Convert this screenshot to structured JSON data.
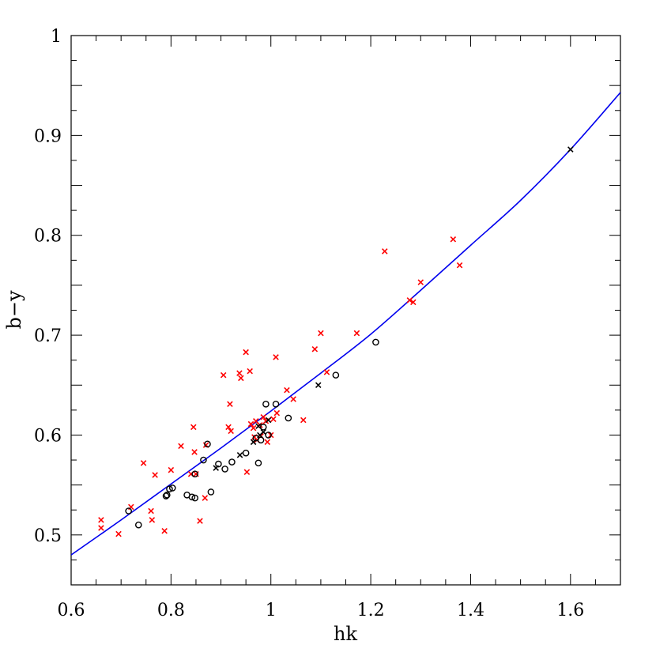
{
  "chart_data": {
    "type": "scatter",
    "title": "",
    "xlabel": "hk",
    "ylabel": "b−y",
    "xlim": [
      0.6,
      1.7
    ],
    "ylim": [
      0.45,
      1.0
    ],
    "x_ticks": [
      "0.6",
      "0.8",
      "1",
      "1.2",
      "1.4",
      "1.6"
    ],
    "y_ticks": [
      "0.5",
      "0.6",
      "0.7",
      "0.8",
      "0.9",
      "1"
    ],
    "grid": false,
    "legend": "none",
    "series": [
      {
        "marker": "x",
        "color": "#ff0000",
        "points": [
          [
            0.66,
            0.515
          ],
          [
            0.66,
            0.507
          ],
          [
            0.695,
            0.501
          ],
          [
            0.72,
            0.528
          ],
          [
            0.745,
            0.572
          ],
          [
            0.76,
            0.524
          ],
          [
            0.762,
            0.515
          ],
          [
            0.768,
            0.56
          ],
          [
            0.787,
            0.504
          ],
          [
            0.8,
            0.565
          ],
          [
            0.82,
            0.589
          ],
          [
            0.84,
            0.561
          ],
          [
            0.845,
            0.608
          ],
          [
            0.847,
            0.583
          ],
          [
            0.85,
            0.561
          ],
          [
            0.858,
            0.514
          ],
          [
            0.868,
            0.537
          ],
          [
            0.87,
            0.59
          ],
          [
            0.905,
            0.66
          ],
          [
            0.915,
            0.608
          ],
          [
            0.918,
            0.631
          ],
          [
            0.92,
            0.604
          ],
          [
            0.937,
            0.662
          ],
          [
            0.94,
            0.657
          ],
          [
            0.95,
            0.683
          ],
          [
            0.952,
            0.563
          ],
          [
            0.958,
            0.664
          ],
          [
            0.96,
            0.611
          ],
          [
            0.965,
            0.607
          ],
          [
            0.967,
            0.598
          ],
          [
            0.97,
            0.614
          ],
          [
            0.972,
            0.595
          ],
          [
            0.978,
            0.61
          ],
          [
            0.98,
            0.599
          ],
          [
            0.985,
            0.618
          ],
          [
            0.99,
            0.614
          ],
          [
            0.993,
            0.593
          ],
          [
            1.0,
            0.6
          ],
          [
            1.005,
            0.616
          ],
          [
            1.01,
            0.678
          ],
          [
            1.012,
            0.622
          ],
          [
            1.032,
            0.645
          ],
          [
            1.045,
            0.636
          ],
          [
            1.065,
            0.615
          ],
          [
            1.088,
            0.686
          ],
          [
            1.1,
            0.702
          ],
          [
            1.112,
            0.663
          ],
          [
            1.172,
            0.702
          ],
          [
            1.228,
            0.784
          ],
          [
            1.278,
            0.735
          ],
          [
            1.285,
            0.733
          ],
          [
            1.3,
            0.753
          ],
          [
            1.365,
            0.796
          ],
          [
            1.378,
            0.77
          ]
        ]
      },
      {
        "marker": "x",
        "color": "#000000",
        "points": [
          [
            0.89,
            0.567
          ],
          [
            0.938,
            0.58
          ],
          [
            0.965,
            0.593
          ],
          [
            0.975,
            0.609
          ],
          [
            0.978,
            0.6
          ],
          [
            0.985,
            0.603
          ],
          [
            0.995,
            0.615
          ],
          [
            1.095,
            0.65
          ],
          [
            1.6,
            0.886
          ]
        ]
      },
      {
        "marker": "circle",
        "color": "#000000",
        "points": [
          [
            0.715,
            0.524
          ],
          [
            0.735,
            0.51
          ],
          [
            0.79,
            0.539
          ],
          [
            0.792,
            0.54
          ],
          [
            0.797,
            0.546
          ],
          [
            0.803,
            0.547
          ],
          [
            0.832,
            0.54
          ],
          [
            0.842,
            0.538
          ],
          [
            0.848,
            0.537
          ],
          [
            0.848,
            0.561
          ],
          [
            0.865,
            0.575
          ],
          [
            0.873,
            0.591
          ],
          [
            0.88,
            0.543
          ],
          [
            0.895,
            0.571
          ],
          [
            0.908,
            0.566
          ],
          [
            0.922,
            0.573
          ],
          [
            0.95,
            0.582
          ],
          [
            0.97,
            0.597
          ],
          [
            0.975,
            0.572
          ],
          [
            0.98,
            0.595
          ],
          [
            0.985,
            0.608
          ],
          [
            0.99,
            0.631
          ],
          [
            0.995,
            0.6
          ],
          [
            1.01,
            0.631
          ],
          [
            1.035,
            0.617
          ],
          [
            1.13,
            0.66
          ],
          [
            1.21,
            0.693
          ]
        ]
      }
    ],
    "fit_curve": {
      "color": "#0000ee",
      "points": [
        [
          0.6,
          0.48
        ],
        [
          0.7,
          0.515
        ],
        [
          0.8,
          0.551
        ],
        [
          0.9,
          0.587
        ],
        [
          1.0,
          0.624
        ],
        [
          1.1,
          0.662
        ],
        [
          1.2,
          0.701
        ],
        [
          1.3,
          0.745
        ],
        [
          1.4,
          0.79
        ],
        [
          1.5,
          0.835
        ],
        [
          1.6,
          0.886
        ],
        [
          1.7,
          0.943
        ]
      ]
    }
  }
}
